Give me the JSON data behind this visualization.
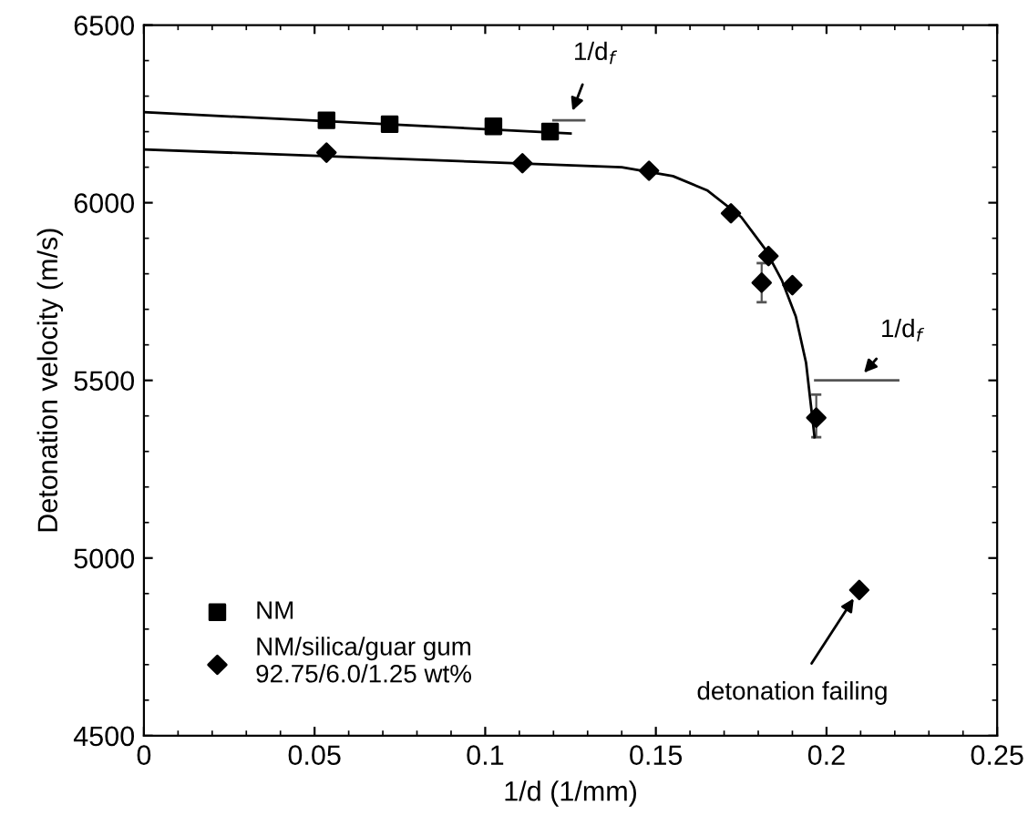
{
  "chart_data": {
    "type": "scatter",
    "xlabel": "1/d (1/mm)",
    "ylabel": "Detonation velocity (m/s)",
    "xlim": [
      0,
      0.25
    ],
    "xticks": [
      0,
      0.05,
      {
        "value": 0.1,
        "label": "0.1"
      },
      0.15,
      {
        "value": 0.2,
        "label": "0.2"
      },
      0.25
    ],
    "ylim": [
      4500,
      6500
    ],
    "yticks": [
      4500,
      5000,
      5500,
      6000,
      6500
    ],
    "grid": false,
    "legend": "bottom left",
    "series": [
      {
        "name": "NM",
        "type": "scatter",
        "marker": "square",
        "color": "#000000",
        "x": [
          0.0535,
          0.072,
          0.1024,
          0.119
        ],
        "values": [
          6232,
          6221,
          6215,
          6200
        ]
      },
      {
        "name": "NM/silica/guar gum\n92.75/6.0/1.25 wt%",
        "type": "scatter",
        "marker": "diamond",
        "color": "#000000",
        "x": [
          0.0535,
          0.1109,
          0.148,
          0.172,
          0.181,
          0.183,
          0.19,
          0.197,
          0.2096
        ],
        "values": [
          6141,
          6111,
          6090,
          5970,
          5775,
          5850,
          5768,
          5395,
          4910
        ],
        "errors": [
          null,
          null,
          null,
          null,
          [
            5720,
            5830
          ],
          null,
          null,
          [
            5340,
            5460
          ],
          null
        ]
      },
      {
        "type": "line",
        "marker": "none",
        "color": "#000000",
        "x": [
          0,
          0.125
        ],
        "values": [
          6255,
          6195
        ]
      },
      {
        "type": "line",
        "marker": "none",
        "color": "#000000",
        "x": [
          0,
          0.14,
          0.155,
          0.165,
          0.175,
          0.182,
          0.187,
          0.191,
          0.194,
          0.1965
        ],
        "values": [
          6150,
          6100,
          6075,
          6035,
          5960,
          5870,
          5780,
          5680,
          5550,
          5340
        ]
      },
      {
        "type": "line",
        "marker": "none",
        "color": "#555555",
        "x": [
          0.12,
          0.129
        ],
        "values": [
          6232,
          6232
        ]
      },
      {
        "type": "line",
        "marker": "none",
        "color": "#555555",
        "x": [
          0.1967,
          0.221
        ],
        "values": [
          5500,
          5500
        ]
      }
    ],
    "annotations": [
      {
        "text": "1/d$_{f}$",
        "x": 0.1245,
        "y": 6232
      },
      {
        "text": "1/d$_{f}$",
        "x": 0.209,
        "y": 5500
      },
      {
        "text": "detonation failing",
        "x": 0.2096,
        "y": 4910
      }
    ]
  }
}
